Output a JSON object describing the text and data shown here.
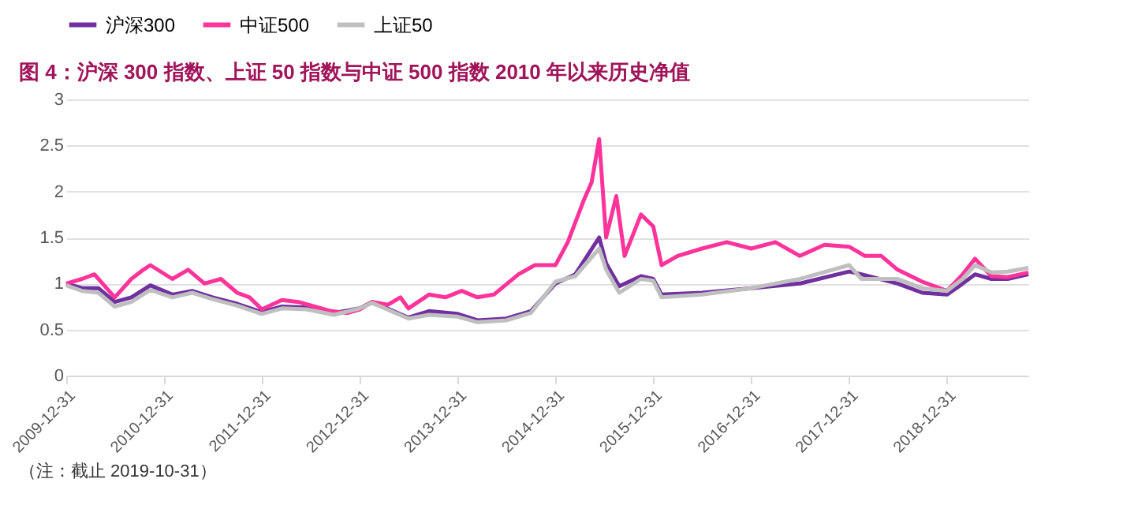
{
  "chart_data": {
    "type": "line",
    "title": "图 4：沪深 300 指数、上证 50 指数与中证 500 指数 2010 年以来历史净值",
    "xlim": [
      "2009-12-31",
      "2019-10-31"
    ],
    "xticks": [
      "2009-12-31",
      "2010-12-31",
      "2011-12-31",
      "2012-12-31",
      "2013-12-31",
      "2014-12-31",
      "2015-12-31",
      "2016-12-31",
      "2017-12-31",
      "2018-12-31"
    ],
    "ylim": [
      0,
      3
    ],
    "yticks": [
      0,
      0.5,
      1,
      1.5,
      2,
      2.5,
      3
    ],
    "grid": "y",
    "legend": "top",
    "marker": "none",
    "line_style": "solid",
    "series": [
      {
        "name": "沪深300",
        "color": "#7030a0",
        "x": [
          "2009-12-31",
          "2010-02-28",
          "2010-04-30",
          "2010-06-30",
          "2010-08-31",
          "2010-11-10",
          "2011-01-31",
          "2011-04-15",
          "2011-06-30",
          "2011-09-30",
          "2011-12-31",
          "2012-03-15",
          "2012-06-15",
          "2012-09-25",
          "2012-12-31",
          "2013-02-15",
          "2013-06-30",
          "2013-09-15",
          "2013-12-31",
          "2014-03-15",
          "2014-06-30",
          "2014-09-30",
          "2014-12-31",
          "2015-03-15",
          "2015-06-12",
          "2015-07-08",
          "2015-08-26",
          "2015-11-15",
          "2015-12-31",
          "2016-01-31",
          "2016-06-30",
          "2016-12-31",
          "2017-06-30",
          "2017-12-31",
          "2018-02-15",
          "2018-06-30",
          "2018-09-30",
          "2018-12-31",
          "2019-02-28",
          "2019-04-15",
          "2019-06-15",
          "2019-08-15",
          "2019-10-31"
        ],
        "values": [
          1.0,
          0.95,
          0.95,
          0.8,
          0.85,
          0.98,
          0.88,
          0.92,
          0.85,
          0.78,
          0.69,
          0.75,
          0.74,
          0.68,
          0.73,
          0.8,
          0.63,
          0.7,
          0.67,
          0.6,
          0.62,
          0.7,
          1.0,
          1.1,
          1.5,
          1.22,
          0.97,
          1.08,
          1.05,
          0.88,
          0.9,
          0.95,
          1.0,
          1.13,
          1.1,
          1.0,
          0.9,
          0.88,
          1.0,
          1.1,
          1.05,
          1.05,
          1.1
        ]
      },
      {
        "name": "中证500",
        "color": "#ff3399",
        "x": [
          "2009-12-31",
          "2010-02-28",
          "2010-04-15",
          "2010-06-30",
          "2010-08-31",
          "2010-10-15",
          "2010-11-10",
          "2011-01-31",
          "2011-03-31",
          "2011-05-31",
          "2011-07-31",
          "2011-09-30",
          "2011-11-15",
          "2011-12-31",
          "2012-03-15",
          "2012-05-15",
          "2012-07-15",
          "2012-09-15",
          "2012-11-15",
          "2012-12-31",
          "2013-02-15",
          "2013-04-15",
          "2013-05-31",
          "2013-06-30",
          "2013-09-15",
          "2013-11-15",
          "2014-01-15",
          "2014-03-15",
          "2014-05-15",
          "2014-08-15",
          "2014-10-15",
          "2014-12-31",
          "2015-02-15",
          "2015-04-15",
          "2015-05-15",
          "2015-06-12",
          "2015-07-08",
          "2015-08-15",
          "2015-09-15",
          "2015-11-15",
          "2015-12-31",
          "2016-01-31",
          "2016-03-31",
          "2016-06-30",
          "2016-09-30",
          "2016-12-31",
          "2017-03-31",
          "2017-06-30",
          "2017-09-30",
          "2017-12-31",
          "2018-02-28",
          "2018-04-30",
          "2018-06-30",
          "2018-09-30",
          "2018-12-31",
          "2019-02-28",
          "2019-04-15",
          "2019-06-15",
          "2019-08-15",
          "2019-10-31"
        ],
        "values": [
          1.0,
          1.05,
          1.1,
          0.85,
          1.05,
          1.15,
          1.2,
          1.05,
          1.15,
          1.0,
          1.05,
          0.9,
          0.85,
          0.72,
          0.82,
          0.8,
          0.75,
          0.7,
          0.68,
          0.72,
          0.8,
          0.77,
          0.85,
          0.73,
          0.88,
          0.85,
          0.92,
          0.85,
          0.88,
          1.1,
          1.2,
          1.2,
          1.45,
          1.9,
          2.1,
          2.57,
          1.5,
          1.95,
          1.3,
          1.75,
          1.62,
          1.2,
          1.3,
          1.38,
          1.45,
          1.38,
          1.45,
          1.3,
          1.42,
          1.4,
          1.3,
          1.3,
          1.15,
          1.02,
          0.92,
          1.1,
          1.27,
          1.08,
          1.07,
          1.12
        ]
      },
      {
        "name": "上证50",
        "color": "#bfbfbf",
        "x": [
          "2009-12-31",
          "2010-02-28",
          "2010-04-30",
          "2010-06-30",
          "2010-08-31",
          "2010-11-10",
          "2011-01-31",
          "2011-04-15",
          "2011-06-30",
          "2011-09-30",
          "2011-12-31",
          "2012-03-15",
          "2012-06-15",
          "2012-09-25",
          "2012-12-31",
          "2013-02-15",
          "2013-06-30",
          "2013-09-15",
          "2013-12-31",
          "2014-03-15",
          "2014-06-30",
          "2014-09-30",
          "2014-12-31",
          "2015-03-15",
          "2015-06-12",
          "2015-07-08",
          "2015-08-26",
          "2015-11-15",
          "2015-12-31",
          "2016-01-31",
          "2016-06-30",
          "2016-12-31",
          "2017-06-30",
          "2017-12-31",
          "2018-02-15",
          "2018-06-30",
          "2018-09-30",
          "2018-12-31",
          "2019-02-28",
          "2019-04-15",
          "2019-06-15",
          "2019-08-15",
          "2019-10-31"
        ],
        "values": [
          0.98,
          0.92,
          0.9,
          0.75,
          0.8,
          0.93,
          0.85,
          0.9,
          0.83,
          0.76,
          0.67,
          0.73,
          0.72,
          0.66,
          0.73,
          0.79,
          0.62,
          0.66,
          0.64,
          0.58,
          0.6,
          0.68,
          1.02,
          1.08,
          1.38,
          1.15,
          0.9,
          1.05,
          1.03,
          0.85,
          0.88,
          0.95,
          1.05,
          1.2,
          1.05,
          1.05,
          0.95,
          0.92,
          1.05,
          1.2,
          1.12,
          1.13,
          1.17
        ]
      }
    ],
    "annotations": [
      "（注：截止 2019-10-31）"
    ]
  }
}
